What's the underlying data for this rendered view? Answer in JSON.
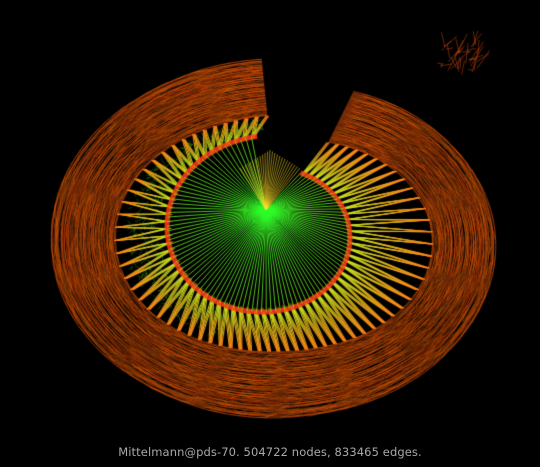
{
  "caption": "Mittelmann@pds-70. 504722 nodes, 833465 edges.",
  "colors": {
    "background": "#000000",
    "caption_text": "#a8a8a8",
    "outer_ring": "#ff6a10",
    "outer_ring_dark": "#ff4a00",
    "spokes_mid": "#ffb020",
    "spokes_inner": "#40ff20",
    "inner_band": "#ff3a10"
  },
  "figure": {
    "type": "graph-drawing",
    "shape": "spiral-heart",
    "color_map": "edge-length: green (short) to red (long)"
  }
}
